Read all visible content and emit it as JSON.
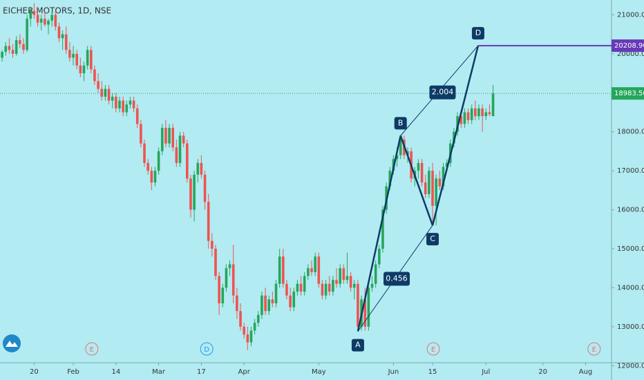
{
  "chart_data": {
    "type": "candlestick",
    "title": "EICHER MOTORS, 1D, NSE",
    "up_color": "#26a65b",
    "down_color": "#ef5350",
    "background": "#b2ebf2",
    "candles": [
      [
        19900,
        20100,
        19800,
        20050
      ],
      [
        20050,
        20300,
        19950,
        20200
      ],
      [
        20200,
        20400,
        20000,
        20100
      ],
      [
        20100,
        20250,
        19900,
        20000
      ],
      [
        20000,
        20450,
        19950,
        20350
      ],
      [
        20350,
        20500,
        20150,
        20250
      ],
      [
        20250,
        20400,
        20000,
        20100
      ],
      [
        20100,
        21000,
        20050,
        20900
      ],
      [
        20900,
        21200,
        20700,
        21100
      ],
      [
        21100,
        21300,
        20900,
        21000
      ],
      [
        21000,
        21200,
        20700,
        20800
      ],
      [
        20800,
        21000,
        20600,
        20900
      ],
      [
        20900,
        21100,
        20700,
        20750
      ],
      [
        20750,
        20900,
        20500,
        20850
      ],
      [
        20850,
        21100,
        20700,
        21000
      ],
      [
        21000,
        21100,
        20600,
        20700
      ],
      [
        20700,
        20800,
        20300,
        20400
      ],
      [
        20400,
        20600,
        20100,
        20500
      ],
      [
        20500,
        20700,
        20000,
        20100
      ],
      [
        20100,
        20300,
        19800,
        19900
      ],
      [
        19900,
        20200,
        19700,
        20000
      ],
      [
        20000,
        20100,
        19600,
        19700
      ],
      [
        19700,
        19900,
        19400,
        19500
      ],
      [
        19500,
        19800,
        19300,
        19700
      ],
      [
        19700,
        20200,
        19600,
        20100
      ],
      [
        20100,
        20200,
        19500,
        19600
      ],
      [
        19600,
        19700,
        19200,
        19300
      ],
      [
        19300,
        19500,
        19000,
        19100
      ],
      [
        19100,
        19300,
        18800,
        18900
      ],
      [
        18900,
        19200,
        18800,
        19100
      ],
      [
        19100,
        19200,
        18700,
        18800
      ],
      [
        18800,
        19000,
        18600,
        18900
      ],
      [
        18900,
        19000,
        18500,
        18600
      ],
      [
        18600,
        18900,
        18500,
        18800
      ],
      [
        18800,
        18900,
        18400,
        18500
      ],
      [
        18500,
        18800,
        18400,
        18700
      ],
      [
        18700,
        18900,
        18600,
        18800
      ],
      [
        18800,
        18900,
        18500,
        18600
      ],
      [
        18600,
        18700,
        18100,
        18200
      ],
      [
        18200,
        18300,
        17600,
        17700
      ],
      [
        17700,
        17800,
        17100,
        17200
      ],
      [
        17200,
        17300,
        16900,
        17000
      ],
      [
        17000,
        17100,
        16500,
        16700
      ],
      [
        16700,
        17100,
        16600,
        17000
      ],
      [
        17000,
        17600,
        16900,
        17500
      ],
      [
        17500,
        18200,
        17400,
        18100
      ],
      [
        18100,
        18300,
        17600,
        17700
      ],
      [
        17700,
        18200,
        17600,
        18100
      ],
      [
        18100,
        18200,
        17500,
        17600
      ],
      [
        17600,
        17800,
        17100,
        17200
      ],
      [
        17200,
        18000,
        17100,
        17900
      ],
      [
        17900,
        18000,
        17600,
        17700
      ],
      [
        17700,
        17800,
        16700,
        16800
      ],
      [
        16800,
        16900,
        15800,
        16000
      ],
      [
        16000,
        17000,
        15700,
        16900
      ],
      [
        16900,
        17300,
        16700,
        17200
      ],
      [
        17200,
        17400,
        16800,
        16900
      ],
      [
        16900,
        17000,
        16000,
        16200
      ],
      [
        16200,
        16400,
        15000,
        15200
      ],
      [
        15200,
        15400,
        14800,
        15000
      ],
      [
        15000,
        15100,
        14200,
        14300
      ],
      [
        14300,
        14400,
        13300,
        13600
      ],
      [
        13600,
        14100,
        13500,
        14000
      ],
      [
        14000,
        14600,
        13900,
        14500
      ],
      [
        14500,
        14700,
        14300,
        14600
      ],
      [
        14600,
        15100,
        13600,
        13800
      ],
      [
        13800,
        14000,
        13200,
        13400
      ],
      [
        13400,
        13600,
        12900,
        13000
      ],
      [
        13000,
        13100,
        12700,
        12800
      ],
      [
        12800,
        13000,
        12400,
        12600
      ],
      [
        12600,
        13000,
        12500,
        12900
      ],
      [
        12900,
        13200,
        12800,
        13100
      ],
      [
        13100,
        13400,
        13000,
        13300
      ],
      [
        13300,
        13900,
        13200,
        13800
      ],
      [
        13800,
        14000,
        13300,
        13400
      ],
      [
        13400,
        13800,
        13300,
        13700
      ],
      [
        13700,
        13900,
        13500,
        13600
      ],
      [
        13600,
        14200,
        13500,
        14100
      ],
      [
        14100,
        15000,
        14000,
        14800
      ],
      [
        14800,
        15000,
        14000,
        14100
      ],
      [
        14100,
        14200,
        13700,
        13800
      ],
      [
        13800,
        14000,
        13400,
        13500
      ],
      [
        13500,
        14000,
        13400,
        13900
      ],
      [
        13900,
        14200,
        13800,
        14100
      ],
      [
        14100,
        14300,
        13800,
        13900
      ],
      [
        13900,
        14400,
        13800,
        14300
      ],
      [
        14300,
        14600,
        14200,
        14500
      ],
      [
        14500,
        14700,
        14300,
        14400
      ],
      [
        14400,
        14900,
        14300,
        14800
      ],
      [
        14800,
        14900,
        14000,
        14100
      ],
      [
        14100,
        14200,
        13700,
        13800
      ],
      [
        13800,
        14200,
        13700,
        14100
      ],
      [
        14100,
        14300,
        13800,
        13900
      ],
      [
        13900,
        14300,
        13800,
        14200
      ],
      [
        14200,
        14500,
        14000,
        14100
      ],
      [
        14100,
        14600,
        14000,
        14500
      ],
      [
        14500,
        14600,
        14100,
        14200
      ],
      [
        14200,
        14900,
        14100,
        14300
      ],
      [
        14300,
        14400,
        13900,
        14000
      ],
      [
        14000,
        14200,
        13700,
        14100
      ],
      [
        14100,
        14200,
        12900,
        13000
      ],
      [
        13000,
        13800,
        12900,
        13700
      ],
      [
        13700,
        14000,
        12900,
        13000
      ],
      [
        13000,
        14100,
        12900,
        14000
      ],
      [
        14000,
        14300,
        13900,
        14100
      ],
      [
        14100,
        14700,
        14000,
        14600
      ],
      [
        14600,
        15100,
        14500,
        15000
      ],
      [
        15000,
        16100,
        14900,
        16000
      ],
      [
        16000,
        16700,
        15900,
        16600
      ],
      [
        16600,
        17100,
        16500,
        17000
      ],
      [
        17000,
        17400,
        16900,
        17300
      ],
      [
        17300,
        17600,
        17100,
        17400
      ],
      [
        17400,
        17900,
        17300,
        17800
      ],
      [
        17800,
        17900,
        17300,
        17400
      ],
      [
        17400,
        17600,
        17200,
        17500
      ],
      [
        17500,
        17600,
        16700,
        16800
      ],
      [
        16800,
        17100,
        16600,
        17000
      ],
      [
        17000,
        17300,
        16800,
        17200
      ],
      [
        17200,
        17300,
        16600,
        16700
      ],
      [
        16700,
        16900,
        16300,
        16400
      ],
      [
        16400,
        17100,
        16300,
        17000
      ],
      [
        17000,
        17200,
        15600,
        16100
      ],
      [
        16100,
        16900,
        15600,
        16800
      ],
      [
        16800,
        17000,
        16500,
        16600
      ],
      [
        16600,
        17200,
        16500,
        17100
      ],
      [
        17100,
        17300,
        17000,
        17200
      ],
      [
        17200,
        17800,
        17100,
        17700
      ],
      [
        17700,
        18100,
        17600,
        18000
      ],
      [
        18000,
        18500,
        17900,
        18400
      ],
      [
        18400,
        18500,
        18100,
        18200
      ],
      [
        18200,
        18600,
        18100,
        18500
      ],
      [
        18500,
        18600,
        18200,
        18300
      ],
      [
        18300,
        18700,
        18200,
        18600
      ],
      [
        18600,
        18800,
        18300,
        18400
      ],
      [
        18400,
        18700,
        18300,
        18600
      ],
      [
        18600,
        18700,
        18000,
        18400
      ],
      [
        18400,
        18600,
        18300,
        18500
      ],
      [
        18500,
        18700,
        18400,
        18450
      ],
      [
        18400,
        19200,
        18400,
        18983.5
      ]
    ],
    "xlim": [
      -0.6,
      171.3
    ],
    "ylim": [
      12076,
      21380
    ],
    "yticks": [
      {
        "value": 12000,
        "label": "12000.00"
      },
      {
        "value": 13000,
        "label": "13000.00"
      },
      {
        "value": 14000,
        "label": "14000.00"
      },
      {
        "value": 15000,
        "label": "15000.00"
      },
      {
        "value": 16000,
        "label": "16000.00"
      },
      {
        "value": 17000,
        "label": "17000.00"
      },
      {
        "value": 18000,
        "label": "18000.00"
      },
      {
        "value": 19000,
        "label": "19000.00"
      },
      {
        "value": 20000,
        "label": "20000.00"
      },
      {
        "value": 21000,
        "label": "21000.00"
      }
    ],
    "xticks": [
      {
        "value": 9,
        "label": "20"
      },
      {
        "value": 20,
        "label": "Feb"
      },
      {
        "value": 32,
        "label": "14"
      },
      {
        "value": 44,
        "label": "Mar"
      },
      {
        "value": 56,
        "label": "17"
      },
      {
        "value": 68,
        "label": "Apr"
      },
      {
        "value": 89,
        "label": "May"
      },
      {
        "value": 110,
        "label": "Jun"
      },
      {
        "value": 121,
        "label": "15"
      },
      {
        "value": 136,
        "label": "Jul"
      },
      {
        "value": 152,
        "label": "20"
      },
      {
        "value": 164,
        "label": "Aug"
      }
    ],
    "last_price": {
      "value": 18983.5,
      "label": "18983.50",
      "color": "#26a65b"
    },
    "target_level": {
      "value": 20208.9,
      "label": "20208.90",
      "color": "#673ab7"
    },
    "pattern": {
      "color": "#0d3b66",
      "points": [
        {
          "label": "A",
          "x": 100,
          "y": 12880
        },
        {
          "label": "B",
          "x": 112,
          "y": 17900
        },
        {
          "label": "C",
          "x": 121,
          "y": 15600
        },
        {
          "label": "D",
          "x": 133.8,
          "y": 20208.9
        }
      ],
      "ratios": [
        {
          "label": "0.456",
          "x": 110.9,
          "y": 14230
        },
        {
          "label": "2.004",
          "x": 123.8,
          "y": 19010
        }
      ]
    },
    "events": [
      {
        "label": "E",
        "x": 25.2,
        "color": "#e57373"
      },
      {
        "label": "D",
        "x": 57.5,
        "color": "#2196f3"
      },
      {
        "label": "E",
        "x": 121.2,
        "color": "#e57373"
      },
      {
        "label": "E",
        "x": 166.4,
        "color": "#e57373"
      }
    ]
  }
}
